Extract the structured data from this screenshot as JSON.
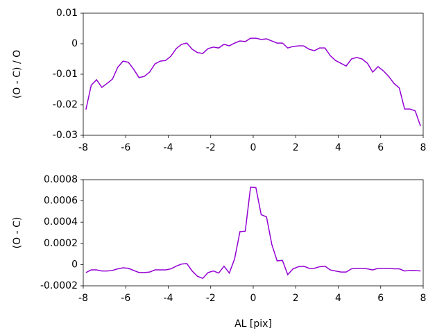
{
  "chart_data": [
    {
      "type": "line",
      "ylabel": "(O - C) / O",
      "x": [
        -7.875,
        -7.625,
        -7.375,
        -7.125,
        -6.875,
        -6.625,
        -6.375,
        -6.125,
        -5.875,
        -5.625,
        -5.375,
        -5.125,
        -4.875,
        -4.625,
        -4.375,
        -4.125,
        -3.875,
        -3.625,
        -3.375,
        -3.125,
        -2.875,
        -2.625,
        -2.375,
        -2.125,
        -1.875,
        -1.625,
        -1.375,
        -1.125,
        -0.875,
        -0.625,
        -0.375,
        -0.125,
        0.125,
        0.375,
        0.625,
        0.875,
        1.125,
        1.375,
        1.625,
        1.875,
        2.125,
        2.375,
        2.625,
        2.875,
        3.125,
        3.375,
        3.625,
        3.875,
        4.125,
        4.375,
        4.625,
        4.875,
        5.125,
        5.375,
        5.625,
        5.875,
        6.125,
        6.375,
        6.625,
        6.875,
        7.125,
        7.375,
        7.625,
        7.875
      ],
      "series": [
        {
          "color": "#9400d3",
          "values": [
            -0.0216,
            -0.0136,
            -0.0118,
            -0.0143,
            -0.013,
            -0.0116,
            -0.0077,
            -0.0057,
            -0.0061,
            -0.0084,
            -0.0111,
            -0.0107,
            -0.0093,
            -0.0066,
            -0.0057,
            -0.0055,
            -0.0041,
            -0.0016,
            -0.0002,
            0.0002,
            -0.0018,
            -0.0029,
            -0.0032,
            -0.0016,
            -0.0011,
            -0.0014,
            -0.0002,
            -0.0007,
            0.0002,
            0.0009,
            0.0007,
            0.0018,
            0.0018,
            0.0014,
            0.0016,
            0.0009,
            0.0002,
            0.0002,
            -0.0014,
            -0.0009,
            -0.0007,
            -0.0007,
            -0.0018,
            -0.0023,
            -0.0014,
            -0.0014,
            -0.0039,
            -0.0055,
            -0.0064,
            -0.0073,
            -0.005,
            -0.0045,
            -0.005,
            -0.0064,
            -0.0093,
            -0.0075,
            -0.0089,
            -0.0107,
            -0.013,
            -0.0145,
            -0.0214,
            -0.0214,
            -0.022,
            -0.027
          ]
        }
      ],
      "xlim": [
        -8,
        8
      ],
      "xticks": [
        -8,
        -6,
        -4,
        -2,
        0,
        2,
        4,
        6,
        8
      ],
      "ylim": [
        -0.03,
        0.01
      ],
      "yticks": [
        -0.03,
        -0.02,
        -0.01,
        0,
        0.01
      ]
    },
    {
      "type": "line",
      "ylabel": "(O - C)",
      "xlabel": "AL [pix]",
      "x": [
        -7.875,
        -7.625,
        -7.375,
        -7.125,
        -6.875,
        -6.625,
        -6.375,
        -6.125,
        -5.875,
        -5.625,
        -5.375,
        -5.125,
        -4.875,
        -4.625,
        -4.375,
        -4.125,
        -3.875,
        -3.625,
        -3.375,
        -3.125,
        -2.875,
        -2.625,
        -2.375,
        -2.125,
        -1.875,
        -1.625,
        -1.375,
        -1.125,
        -0.875,
        -0.625,
        -0.375,
        -0.125,
        0.125,
        0.375,
        0.625,
        0.875,
        1.125,
        1.375,
        1.625,
        1.875,
        2.125,
        2.375,
        2.625,
        2.875,
        3.125,
        3.375,
        3.625,
        3.875,
        4.125,
        4.375,
        4.625,
        4.875,
        5.125,
        5.375,
        5.625,
        5.875,
        6.125,
        6.375,
        6.625,
        6.875,
        7.125,
        7.375,
        7.625,
        7.875
      ],
      "series": [
        {
          "color": "#9400d3",
          "values": [
            -7.5e-05,
            -5e-05,
            -5e-05,
            -6e-05,
            -6e-05,
            -5.5e-05,
            -4e-05,
            -3e-05,
            -3.5e-05,
            -5.5e-05,
            -7.5e-05,
            -7.5e-05,
            -7e-05,
            -5e-05,
            -5e-05,
            -5e-05,
            -4e-05,
            -1.5e-05,
            5e-06,
            1e-05,
            -6e-05,
            -0.00011,
            -0.00013,
            -7.5e-05,
            -6e-05,
            -8e-05,
            -1.5e-05,
            -8e-05,
            5.5e-05,
            0.00031,
            0.000315,
            0.00073,
            0.000725,
            0.00047,
            0.00045,
            0.00019,
            3.5e-05,
            4e-05,
            -9.5e-05,
            -4e-05,
            -2e-05,
            -1.5e-05,
            -3.5e-05,
            -3.5e-05,
            -2e-05,
            -1.5e-05,
            -5e-05,
            -6e-05,
            -7e-05,
            -7e-05,
            -4e-05,
            -3.5e-05,
            -3.5e-05,
            -4e-05,
            -5e-05,
            -3.5e-05,
            -3.5e-05,
            -3.5e-05,
            -4e-05,
            -4e-05,
            -6e-05,
            -5.5e-05,
            -5.5e-05,
            -6e-05
          ]
        }
      ],
      "xlim": [
        -8,
        8
      ],
      "xticks": [
        -8,
        -6,
        -4,
        -2,
        0,
        2,
        4,
        6,
        8
      ],
      "ylim": [
        -0.0002,
        0.0008
      ],
      "yticks": [
        -0.0002,
        0,
        0.0002,
        0.0004,
        0.0006,
        0.0008
      ]
    }
  ]
}
